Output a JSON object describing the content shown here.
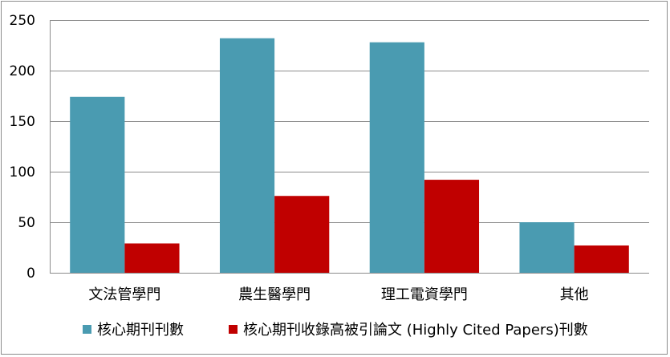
{
  "chart_data": {
    "type": "bar",
    "title": "",
    "xlabel": "",
    "ylabel": "",
    "categories": [
      "文法管學門",
      "農生醫學門",
      "理工電資學門",
      "其他"
    ],
    "series": [
      {
        "name": "核心期刊刊數",
        "color": "#4A9BB1",
        "values": [
          174,
          232,
          228,
          50
        ]
      },
      {
        "name": "核心期刊收錄高被引論文 (Highly Cited Papers)刊數",
        "color": "#C00000",
        "values": [
          29,
          76,
          92,
          27
        ]
      }
    ],
    "ylim": [
      0,
      250
    ],
    "yticks": [
      0,
      50,
      100,
      150,
      200,
      250
    ],
    "grid": true,
    "legend_position": "bottom"
  }
}
